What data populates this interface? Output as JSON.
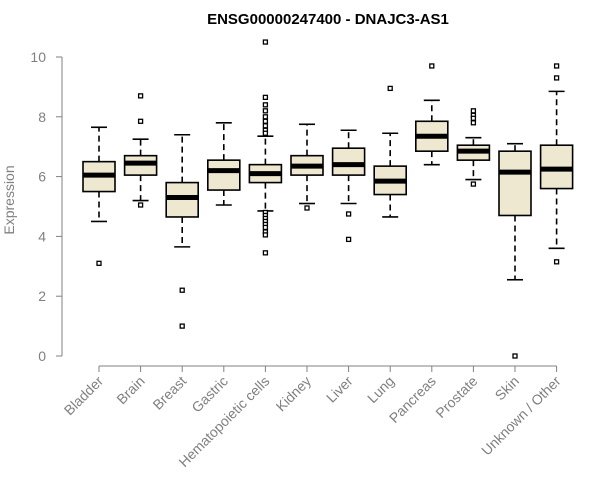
{
  "chart_data": {
    "type": "boxplot",
    "title": "ENSG00000247400 - DNAJC3-AS1",
    "xlabel": "",
    "ylabel": "Expression",
    "ylim": [
      0,
      10.5
    ],
    "yticks": [
      0,
      2,
      4,
      6,
      8,
      10
    ],
    "box_fill": "#EFE8D0",
    "axis_color": "#808080",
    "categories": [
      "Bladder",
      "Brain",
      "Breast",
      "Gastric",
      "Hematopoietic cells",
      "Kidney",
      "Liver",
      "Lung",
      "Pancreas",
      "Prostate",
      "Skin",
      "Unknown / Other"
    ],
    "boxes": [
      {
        "name": "Bladder",
        "whisker_low": 4.5,
        "q1": 5.5,
        "median": 6.05,
        "q3": 6.5,
        "whisker_high": 7.65,
        "outliers": [
          3.1
        ]
      },
      {
        "name": "Brain",
        "whisker_low": 5.2,
        "q1": 6.05,
        "median": 6.45,
        "q3": 6.7,
        "whisker_high": 7.25,
        "outliers": [
          8.7,
          7.85,
          5.05
        ]
      },
      {
        "name": "Breast",
        "whisker_low": 3.65,
        "q1": 4.65,
        "median": 5.3,
        "q3": 5.8,
        "whisker_high": 7.4,
        "outliers": [
          2.2,
          1.0
        ]
      },
      {
        "name": "Gastric",
        "whisker_low": 5.05,
        "q1": 5.55,
        "median": 6.2,
        "q3": 6.55,
        "whisker_high": 7.8,
        "outliers": []
      },
      {
        "name": "Hematopoietic cells",
        "whisker_low": 4.85,
        "q1": 5.8,
        "median": 6.1,
        "q3": 6.4,
        "whisker_high": 7.35,
        "outliers": [
          10.5,
          8.65,
          8.4,
          8.2,
          8.0,
          7.85,
          7.7,
          7.55,
          7.45,
          4.8,
          4.7,
          4.6,
          4.5,
          4.4,
          4.3,
          4.15,
          4.05,
          3.45
        ]
      },
      {
        "name": "Kidney",
        "whisker_low": 5.1,
        "q1": 6.05,
        "median": 6.35,
        "q3": 6.7,
        "whisker_high": 7.75,
        "outliers": [
          4.95
        ]
      },
      {
        "name": "Liver",
        "whisker_low": 5.1,
        "q1": 6.05,
        "median": 6.4,
        "q3": 6.95,
        "whisker_high": 7.55,
        "outliers": [
          4.75,
          3.9
        ]
      },
      {
        "name": "Lung",
        "whisker_low": 4.65,
        "q1": 5.4,
        "median": 5.85,
        "q3": 6.35,
        "whisker_high": 7.45,
        "outliers": [
          8.95
        ]
      },
      {
        "name": "Pancreas",
        "whisker_low": 6.4,
        "q1": 6.85,
        "median": 7.35,
        "q3": 7.85,
        "whisker_high": 8.55,
        "outliers": [
          9.7
        ]
      },
      {
        "name": "Prostate",
        "whisker_low": 5.9,
        "q1": 6.55,
        "median": 6.85,
        "q3": 7.05,
        "whisker_high": 7.3,
        "outliers": [
          8.2,
          8.05,
          7.95,
          7.8,
          5.75
        ]
      },
      {
        "name": "Skin",
        "whisker_low": 2.55,
        "q1": 4.7,
        "median": 6.15,
        "q3": 6.85,
        "whisker_high": 7.1,
        "outliers": [
          0.0
        ]
      },
      {
        "name": "Unknown / Other",
        "whisker_low": 3.6,
        "q1": 5.6,
        "median": 6.25,
        "q3": 7.05,
        "whisker_high": 8.85,
        "outliers": [
          9.7,
          9.3,
          3.15
        ]
      }
    ]
  }
}
